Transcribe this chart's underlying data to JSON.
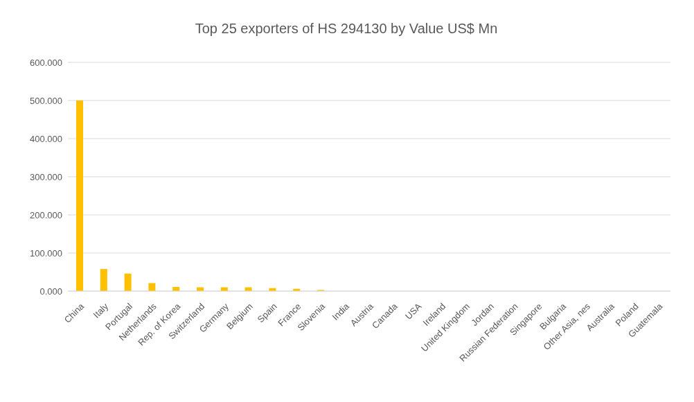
{
  "chart_data": {
    "type": "bar",
    "title": "Top 25 exporters of HS 294130 by Value US$ Mn",
    "categories": [
      "China",
      "Italy",
      "Portugal",
      "Netherlands",
      "Rep. of Korea",
      "Switzerland",
      "Germany",
      "Belgium",
      "Spain",
      "France",
      "Slovenia",
      "India",
      "Austria",
      "Canada",
      "USA",
      "Ireland",
      "United Kingdom",
      "Jordan",
      "Russian Federation",
      "Singapore",
      "Bulgaria",
      "Other Asia, nes",
      "Australia",
      "Poland",
      "Guatemala"
    ],
    "values": [
      500,
      58,
      46,
      21,
      11,
      10,
      10,
      10,
      8,
      6,
      3,
      0,
      0,
      0,
      0,
      0,
      0,
      0,
      0,
      0,
      0,
      0,
      0,
      0,
      0
    ],
    "color": "#ffc000",
    "ylim": [
      0,
      600
    ],
    "yticks": [
      {
        "value": 0,
        "label": "0.000"
      },
      {
        "value": 100,
        "label": "100.000"
      },
      {
        "value": 200,
        "label": "200.000"
      },
      {
        "value": 300,
        "label": "300.000"
      },
      {
        "value": 400,
        "label": "400.000"
      },
      {
        "value": 500,
        "label": "500.000"
      },
      {
        "value": 600,
        "label": "600.000"
      }
    ],
    "grid": "y"
  }
}
